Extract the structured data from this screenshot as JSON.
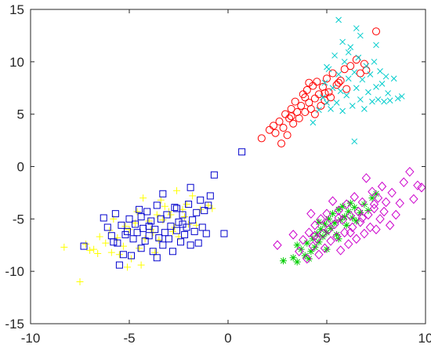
{
  "chart_data": {
    "type": "scatter",
    "xlim": [
      -10,
      10
    ],
    "ylim": [
      -15,
      15
    ],
    "x_ticks": [
      -10,
      -5,
      0,
      5,
      10
    ],
    "y_ticks": [
      -15,
      -10,
      -5,
      0,
      5,
      10,
      15
    ],
    "x_tick_labels": [
      "-10",
      "-5",
      "0",
      "5",
      "10"
    ],
    "y_tick_labels": [
      "-15",
      "-10",
      "-5",
      "0",
      "5",
      "10",
      "15"
    ],
    "grid": false,
    "series": [
      {
        "marker": "plus",
        "color": "#ffff00",
        "points": [
          [
            -8.3,
            -7.7
          ],
          [
            -7.5,
            -11.0
          ],
          [
            -7.2,
            -7.4
          ],
          [
            -7.0,
            -8.0
          ],
          [
            -6.8,
            -7.9
          ],
          [
            -6.5,
            -6.7
          ],
          [
            -6.2,
            -7.3
          ],
          [
            -6.0,
            -6.1
          ],
          [
            -5.8,
            -5.0
          ],
          [
            -5.6,
            -6.8
          ],
          [
            -5.5,
            -8.4
          ],
          [
            -5.3,
            -7.6
          ],
          [
            -5.1,
            -9.6
          ],
          [
            -5.0,
            -6.0
          ],
          [
            -4.9,
            -8.8
          ],
          [
            -4.7,
            -5.4
          ],
          [
            -4.6,
            -4.3
          ],
          [
            -4.5,
            -7.8
          ],
          [
            -4.3,
            -3.0
          ],
          [
            -4.2,
            -6.9
          ],
          [
            -4.0,
            -5.2
          ],
          [
            -3.9,
            -6.0
          ],
          [
            -3.7,
            -8.2
          ],
          [
            -3.6,
            -4.6
          ],
          [
            -3.5,
            -7.0
          ],
          [
            -3.3,
            -5.1
          ],
          [
            -3.2,
            -3.8
          ],
          [
            -3.0,
            -4.3
          ],
          [
            -2.9,
            -4.6
          ],
          [
            -2.7,
            -5.8
          ],
          [
            -2.6,
            -2.3
          ],
          [
            -2.5,
            -6.7
          ],
          [
            -2.3,
            -4.1
          ],
          [
            -2.1,
            -3.6
          ],
          [
            -2.0,
            -5.5
          ],
          [
            -1.8,
            -2.8
          ],
          [
            -1.6,
            -5.6
          ],
          [
            -1.4,
            -4.1
          ],
          [
            -1.0,
            -3.7
          ],
          [
            -0.8,
            -4.0
          ],
          [
            -5.9,
            -8.2
          ],
          [
            -4.4,
            -9.4
          ],
          [
            -3.8,
            -6.3
          ],
          [
            -2.8,
            -6.2
          ],
          [
            -6.6,
            -8.3
          ],
          [
            -5.2,
            -5.7
          ],
          [
            -3.4,
            -3.2
          ],
          [
            -2.2,
            -4.8
          ]
        ]
      },
      {
        "marker": "square",
        "color": "#0000cc",
        "points": [
          [
            -7.3,
            -7.6
          ],
          [
            -6.3,
            -4.9
          ],
          [
            -6.1,
            -5.8
          ],
          [
            -5.9,
            -6.6
          ],
          [
            -5.7,
            -4.5
          ],
          [
            -5.6,
            -7.3
          ],
          [
            -5.5,
            -9.4
          ],
          [
            -5.4,
            -5.6
          ],
          [
            -5.3,
            -8.4
          ],
          [
            -5.2,
            -6.5
          ],
          [
            -5.1,
            -6.2
          ],
          [
            -5.0,
            -5.0
          ],
          [
            -4.9,
            -8.5
          ],
          [
            -4.8,
            -6.9
          ],
          [
            -4.7,
            -5.5
          ],
          [
            -4.6,
            -6.3
          ],
          [
            -4.5,
            -4.1
          ],
          [
            -4.4,
            -7.8
          ],
          [
            -4.3,
            -5.9
          ],
          [
            -4.2,
            -7.1
          ],
          [
            -4.1,
            -4.3
          ],
          [
            -4.0,
            -6.6
          ],
          [
            -3.9,
            -5.2
          ],
          [
            -3.8,
            -8.1
          ],
          [
            -3.7,
            -6.0
          ],
          [
            -3.6,
            -3.7
          ],
          [
            -3.5,
            -6.8
          ],
          [
            -3.4,
            -5.0
          ],
          [
            -3.3,
            -7.5
          ],
          [
            -3.2,
            -6.3
          ],
          [
            -3.1,
            -4.6
          ],
          [
            -3.0,
            -6.9
          ],
          [
            -2.9,
            -5.7
          ],
          [
            -2.8,
            -8.1
          ],
          [
            -2.7,
            -3.9
          ],
          [
            -2.6,
            -6.1
          ],
          [
            -2.5,
            -5.3
          ],
          [
            -2.4,
            -7.2
          ],
          [
            -2.3,
            -4.6
          ],
          [
            -2.2,
            -6.5
          ],
          [
            -2.1,
            -5.8
          ],
          [
            -2.0,
            -3.6
          ],
          [
            -1.9,
            -7.5
          ],
          [
            -1.8,
            -5.1
          ],
          [
            -1.7,
            -6.2
          ],
          [
            -1.6,
            -4.4
          ],
          [
            -1.5,
            -7.3
          ],
          [
            -1.4,
            -3.2
          ],
          [
            -1.3,
            -5.8
          ],
          [
            -1.2,
            -4.2
          ],
          [
            -1.1,
            -6.4
          ],
          [
            -1.0,
            -3.7
          ],
          [
            -0.9,
            -2.8
          ],
          [
            -0.7,
            -0.8
          ],
          [
            -0.2,
            -6.4
          ],
          [
            0.7,
            1.4
          ],
          [
            -4.4,
            -4.8
          ],
          [
            -3.6,
            -8.7
          ],
          [
            -2.6,
            -4.0
          ],
          [
            -1.9,
            -2.0
          ],
          [
            -5.8,
            -7.2
          ],
          [
            -3.3,
            -2.6
          ],
          [
            -4.0,
            -5.7
          ],
          [
            -2.3,
            -5.5
          ]
        ]
      },
      {
        "marker": "circle",
        "color": "#ff0000",
        "points": [
          [
            1.7,
            2.7
          ],
          [
            2.1,
            3.5
          ],
          [
            2.3,
            3.9
          ],
          [
            2.4,
            3.2
          ],
          [
            2.6,
            4.3
          ],
          [
            2.7,
            2.2
          ],
          [
            2.8,
            3.7
          ],
          [
            2.9,
            5.0
          ],
          [
            3.0,
            3.0
          ],
          [
            3.1,
            4.6
          ],
          [
            3.2,
            5.5
          ],
          [
            3.3,
            4.1
          ],
          [
            3.4,
            6.2
          ],
          [
            3.5,
            5.2
          ],
          [
            3.6,
            4.6
          ],
          [
            3.7,
            5.8
          ],
          [
            3.8,
            6.9
          ],
          [
            3.9,
            5.2
          ],
          [
            4.0,
            7.3
          ],
          [
            4.1,
            6.1
          ],
          [
            4.2,
            5.5
          ],
          [
            4.3,
            7.7
          ],
          [
            4.4,
            6.5
          ],
          [
            4.5,
            8.1
          ],
          [
            4.6,
            6.9
          ],
          [
            4.7,
            5.8
          ],
          [
            4.8,
            7.6
          ],
          [
            4.9,
            6.3
          ],
          [
            5.0,
            8.4
          ],
          [
            5.1,
            7.1
          ],
          [
            5.2,
            6.6
          ],
          [
            5.3,
            8.9
          ],
          [
            5.5,
            7.8
          ],
          [
            5.7,
            8.2
          ],
          [
            5.9,
            9.3
          ],
          [
            6.2,
            9.6
          ],
          [
            6.5,
            10.2
          ],
          [
            6.7,
            8.9
          ],
          [
            6.9,
            9.8
          ],
          [
            7.0,
            9.2
          ],
          [
            7.5,
            12.9
          ],
          [
            3.2,
            4.8
          ],
          [
            3.9,
            6.6
          ],
          [
            4.4,
            5.0
          ],
          [
            4.9,
            7.0
          ],
          [
            5.6,
            8.0
          ],
          [
            6.0,
            7.4
          ],
          [
            4.1,
            8.0
          ]
        ]
      },
      {
        "marker": "x",
        "color": "#00cccc",
        "points": [
          [
            4.3,
            4.2
          ],
          [
            4.6,
            5.4
          ],
          [
            4.8,
            6.6
          ],
          [
            4.9,
            8.0
          ],
          [
            5.0,
            6.1
          ],
          [
            5.1,
            9.3
          ],
          [
            5.2,
            5.5
          ],
          [
            5.3,
            7.5
          ],
          [
            5.4,
            10.6
          ],
          [
            5.5,
            6.1
          ],
          [
            5.6,
            8.8
          ],
          [
            5.7,
            7.2
          ],
          [
            5.8,
            5.3
          ],
          [
            5.9,
            10.0
          ],
          [
            6.0,
            6.8
          ],
          [
            6.1,
            8.4
          ],
          [
            6.2,
            11.4
          ],
          [
            6.3,
            5.8
          ],
          [
            6.4,
            9.0
          ],
          [
            6.5,
            7.5
          ],
          [
            6.6,
            10.4
          ],
          [
            6.7,
            6.4
          ],
          [
            6.8,
            8.3
          ],
          [
            6.9,
            5.5
          ],
          [
            7.0,
            9.6
          ],
          [
            7.1,
            7.1
          ],
          [
            7.2,
            8.8
          ],
          [
            7.3,
            6.2
          ],
          [
            7.4,
            10.0
          ],
          [
            7.5,
            7.6
          ],
          [
            7.6,
            6.4
          ],
          [
            7.7,
            9.1
          ],
          [
            7.8,
            7.9
          ],
          [
            7.9,
            6.2
          ],
          [
            8.0,
            8.6
          ],
          [
            8.1,
            7.0
          ],
          [
            8.2,
            6.3
          ],
          [
            8.4,
            8.4
          ],
          [
            8.6,
            6.5
          ],
          [
            8.8,
            6.7
          ],
          [
            6.4,
            2.4
          ],
          [
            5.6,
            14.0
          ],
          [
            6.5,
            13.2
          ],
          [
            5.0,
            9.5
          ],
          [
            5.8,
            11.9
          ],
          [
            6.7,
            12.5
          ],
          [
            7.5,
            11.6
          ],
          [
            6.1,
            10.9
          ]
        ]
      },
      {
        "marker": "asterisk",
        "color": "#00cc00",
        "points": [
          [
            2.8,
            -9.0
          ],
          [
            3.3,
            -8.7
          ],
          [
            3.5,
            -9.1
          ],
          [
            3.7,
            -7.9
          ],
          [
            3.9,
            -8.5
          ],
          [
            4.0,
            -7.3
          ],
          [
            4.2,
            -8.1
          ],
          [
            4.3,
            -6.9
          ],
          [
            4.4,
            -7.7
          ],
          [
            4.5,
            -6.4
          ],
          [
            4.6,
            -7.2
          ],
          [
            4.7,
            -6.0
          ],
          [
            4.8,
            -6.7
          ],
          [
            4.9,
            -5.5
          ],
          [
            5.0,
            -6.3
          ],
          [
            5.1,
            -5.0
          ],
          [
            5.2,
            -5.9
          ],
          [
            5.3,
            -4.5
          ],
          [
            5.4,
            -5.4
          ],
          [
            5.5,
            -6.5
          ],
          [
            5.6,
            -4.1
          ],
          [
            5.7,
            -5.1
          ],
          [
            5.8,
            -3.8
          ],
          [
            5.9,
            -4.8
          ],
          [
            6.0,
            -5.6
          ],
          [
            6.1,
            -4.3
          ],
          [
            6.2,
            -3.5
          ],
          [
            6.3,
            -4.9
          ],
          [
            6.4,
            -3.9
          ],
          [
            6.5,
            -5.2
          ],
          [
            6.7,
            -4.4
          ],
          [
            6.9,
            -3.6
          ],
          [
            7.1,
            -4.2
          ],
          [
            7.3,
            -3.0
          ],
          [
            7.5,
            -2.6
          ],
          [
            4.1,
            -8.8
          ],
          [
            4.6,
            -5.3
          ],
          [
            5.6,
            -6.9
          ],
          [
            3.5,
            -7.5
          ],
          [
            5.0,
            -7.9
          ]
        ]
      },
      {
        "marker": "diamond",
        "color": "#cc00cc",
        "points": [
          [
            2.5,
            -7.5
          ],
          [
            3.3,
            -6.5
          ],
          [
            3.6,
            -8.1
          ],
          [
            3.8,
            -7.0
          ],
          [
            4.0,
            -8.8
          ],
          [
            4.1,
            -6.3
          ],
          [
            4.2,
            -4.5
          ],
          [
            4.3,
            -7.6
          ],
          [
            4.4,
            -5.6
          ],
          [
            4.5,
            -6.9
          ],
          [
            4.6,
            -8.4
          ],
          [
            4.7,
            -5.0
          ],
          [
            4.8,
            -6.4
          ],
          [
            4.9,
            -7.8
          ],
          [
            5.0,
            -4.5
          ],
          [
            5.1,
            -6.0
          ],
          [
            5.2,
            -7.1
          ],
          [
            5.3,
            -3.3
          ],
          [
            5.4,
            -5.5
          ],
          [
            5.5,
            -6.7
          ],
          [
            5.6,
            -4.2
          ],
          [
            5.7,
            -8.0
          ],
          [
            5.8,
            -5.1
          ],
          [
            5.9,
            -6.3
          ],
          [
            6.0,
            -3.6
          ],
          [
            6.1,
            -7.4
          ],
          [
            6.2,
            -4.7
          ],
          [
            6.3,
            -5.8
          ],
          [
            6.4,
            -2.9
          ],
          [
            6.5,
            -6.9
          ],
          [
            6.6,
            -4.3
          ],
          [
            6.7,
            -5.3
          ],
          [
            6.8,
            -3.4
          ],
          [
            6.9,
            -6.4
          ],
          [
            7.0,
            -1.1
          ],
          [
            7.1,
            -4.6
          ],
          [
            7.2,
            -5.8
          ],
          [
            7.3,
            -2.4
          ],
          [
            7.4,
            -4.0
          ],
          [
            7.5,
            -6.0
          ],
          [
            7.6,
            -3.0
          ],
          [
            7.7,
            -5.0
          ],
          [
            7.8,
            -1.9
          ],
          [
            7.9,
            -4.3
          ],
          [
            8.0,
            -3.4
          ],
          [
            8.2,
            -5.6
          ],
          [
            8.3,
            -2.5
          ],
          [
            8.5,
            -4.6
          ],
          [
            8.7,
            -3.5
          ],
          [
            8.9,
            -1.5
          ],
          [
            9.2,
            -0.5
          ],
          [
            9.4,
            -3.1
          ],
          [
            9.6,
            -1.8
          ],
          [
            9.8,
            -2.0
          ],
          [
            4.4,
            -6.6
          ],
          [
            5.0,
            -5.4
          ],
          [
            5.6,
            -4.9
          ],
          [
            6.2,
            -6.3
          ],
          [
            6.8,
            -4.9
          ],
          [
            7.4,
            -3.6
          ]
        ]
      }
    ]
  }
}
